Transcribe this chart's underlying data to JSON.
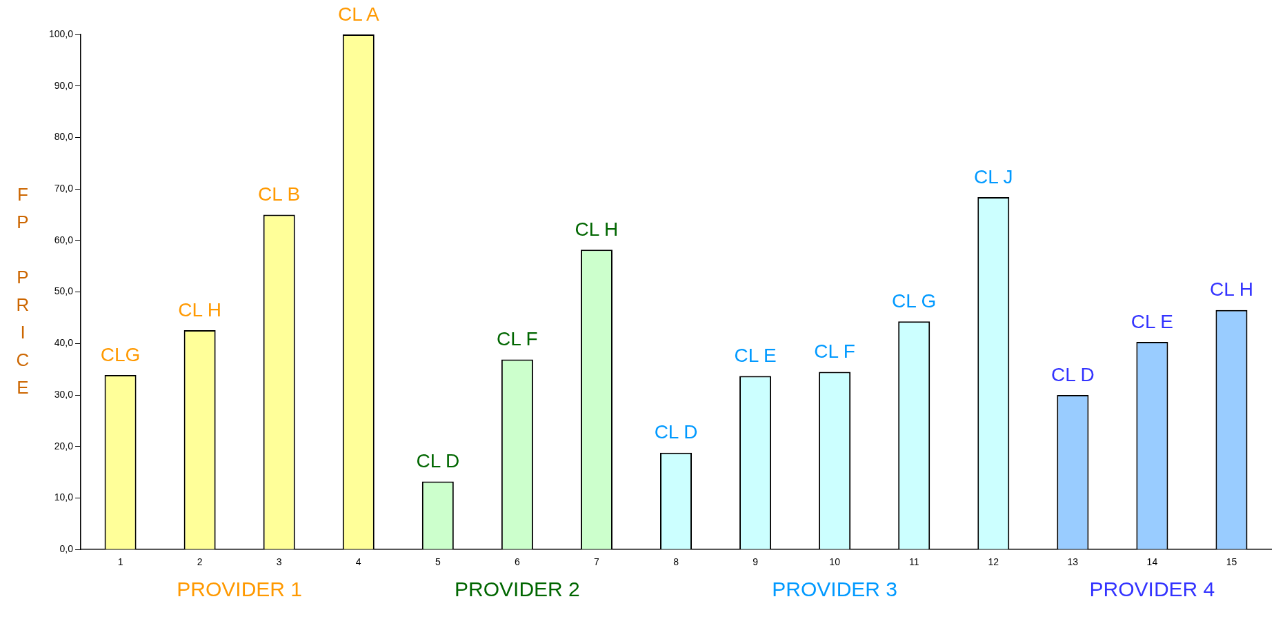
{
  "chart_data": {
    "type": "bar",
    "ylabel": "FP PRICE",
    "categories": [
      "1",
      "2",
      "3",
      "4",
      "5",
      "6",
      "7",
      "8",
      "9",
      "10",
      "11",
      "12",
      "13",
      "14",
      "15"
    ],
    "series": [
      {
        "name": "PROVIDER 1",
        "color": "#ffff99",
        "values": [
          33.9,
          42.6,
          65.0,
          100.0,
          null,
          null,
          null,
          null,
          null,
          null,
          null,
          null,
          null,
          null,
          null
        ]
      },
      {
        "name": "PROVIDER 2",
        "color": "#ccffcc",
        "values": [
          null,
          null,
          null,
          null,
          13.2,
          36.9,
          58.2,
          null,
          null,
          null,
          null,
          null,
          null,
          null,
          null
        ]
      },
      {
        "name": "PROVIDER 3",
        "color": "#ccffff",
        "values": [
          null,
          null,
          null,
          null,
          null,
          null,
          null,
          18.8,
          33.7,
          34.5,
          44.3,
          68.4,
          null,
          null,
          null
        ]
      },
      {
        "name": "PROVIDER 4",
        "color": "#99ccff",
        "values": [
          null,
          null,
          null,
          null,
          null,
          null,
          null,
          null,
          null,
          null,
          null,
          null,
          30.0,
          40.3,
          46.5
        ]
      }
    ],
    "ylim": [
      0,
      100
    ],
    "yticks": [
      {
        "value": 0,
        "label": "0,0"
      },
      {
        "value": 10,
        "label": "10,0"
      },
      {
        "value": 20,
        "label": "20,0"
      },
      {
        "value": 30,
        "label": "30,0"
      },
      {
        "value": 40,
        "label": "40,0"
      },
      {
        "value": 50,
        "label": "50,0"
      },
      {
        "value": 60,
        "label": "60,0"
      },
      {
        "value": 70,
        "label": "70,0"
      },
      {
        "value": 80,
        "label": "80,0"
      },
      {
        "value": 90,
        "label": "90,0"
      },
      {
        "value": 100,
        "label": "100,0"
      }
    ],
    "grid": false,
    "legend": false,
    "annotations": [
      {
        "text": "CLG",
        "x": "1",
        "y": 33.9
      },
      {
        "text": "CL H",
        "x": "2",
        "y": 42.6
      },
      {
        "text": "CL B",
        "x": "3",
        "y": 65.0
      },
      {
        "text": "CL A",
        "x": "4",
        "y": 100.0
      },
      {
        "text": "CL D",
        "x": "5",
        "y": 13.2
      },
      {
        "text": "CL F",
        "x": "6",
        "y": 36.9
      },
      {
        "text": "CL H",
        "x": "7",
        "y": 58.2
      },
      {
        "text": "CL D",
        "x": "8",
        "y": 18.8
      },
      {
        "text": "CL E",
        "x": "9",
        "y": 33.7
      },
      {
        "text": "CL F",
        "x": "10",
        "y": 34.5
      },
      {
        "text": "CL G",
        "x": "11",
        "y": 44.3
      },
      {
        "text": "CL J",
        "x": "12",
        "y": 68.4
      },
      {
        "text": "CL D",
        "x": "13",
        "y": 30.0
      },
      {
        "text": "CL E",
        "x": "14",
        "y": 40.3
      },
      {
        "text": "CL H",
        "x": "15",
        "y": 46.5
      }
    ]
  }
}
